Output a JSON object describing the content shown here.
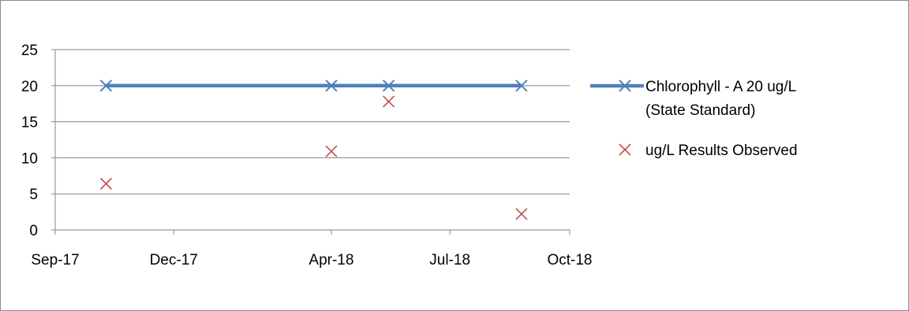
{
  "chart_data": {
    "type": "scatter",
    "title": "",
    "xlabel": "",
    "ylabel": "",
    "x_axis_type": "date",
    "xlim": [
      "2017-09-01",
      "2018-10-01"
    ],
    "ylim": [
      0,
      25
    ],
    "y_ticks": [
      0,
      5,
      10,
      15,
      20,
      25
    ],
    "x_ticks": [
      {
        "date": "2017-09-01",
        "label": "Sep-17"
      },
      {
        "date": "2017-12-01",
        "label": "Dec-17"
      },
      {
        "date": "2018-04-01",
        "label": "Apr-18"
      },
      {
        "date": "2018-07-01",
        "label": "Jul-18"
      },
      {
        "date": "2018-10-01",
        "label": "Oct-18"
      }
    ],
    "grid": "horizontal",
    "legend_position": "right",
    "series": [
      {
        "name": "Chlorophyll - A 20 ug/L (State Standard)",
        "legend_lines": [
          "Chlorophyll - A 20 ug/L",
          "(State Standard)"
        ],
        "style": "line-with-markers",
        "marker": "x",
        "color": "#4f81bd",
        "points": [
          {
            "x": "2017-10-10",
            "y": 20
          },
          {
            "x": "2018-04-01",
            "y": 20
          },
          {
            "x": "2018-05-15",
            "y": 20
          },
          {
            "x": "2018-08-25",
            "y": 20
          }
        ]
      },
      {
        "name": "ug/L  Results Observed",
        "legend_lines": [
          "ug/L  Results Observed"
        ],
        "style": "markers",
        "marker": "x",
        "color": "#c0504d",
        "points": [
          {
            "x": "2017-10-10",
            "y": 6.4
          },
          {
            "x": "2018-04-01",
            "y": 10.9
          },
          {
            "x": "2018-05-15",
            "y": 17.8
          },
          {
            "x": "2018-08-25",
            "y": 2.2
          }
        ]
      }
    ]
  }
}
